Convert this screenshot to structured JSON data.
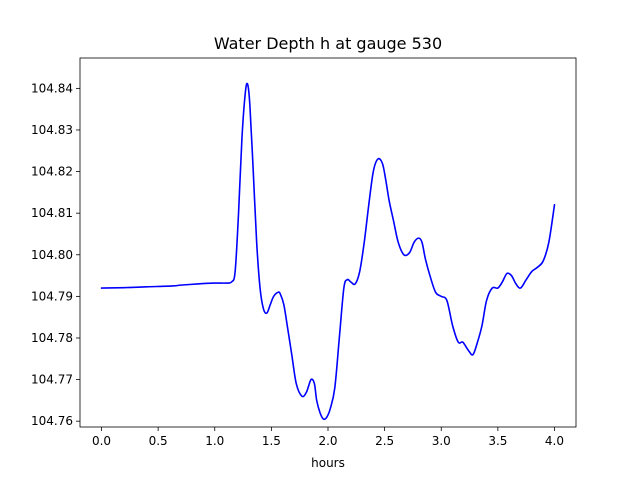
{
  "chart_data": {
    "type": "line",
    "title": "Water Depth h at gauge 530",
    "xlabel": "hours",
    "ylabel": "",
    "xlim": [
      -0.19,
      4.19
    ],
    "ylim": [
      104.7586,
      104.8473
    ],
    "grid": false,
    "x_ticks": [
      0.0,
      0.5,
      1.0,
      1.5,
      2.0,
      2.5,
      3.0,
      3.5,
      4.0
    ],
    "x_tick_labels": [
      "0.0",
      "0.5",
      "1.0",
      "1.5",
      "2.0",
      "2.5",
      "3.0",
      "3.5",
      "4.0"
    ],
    "y_ticks": [
      104.76,
      104.77,
      104.78,
      104.79,
      104.8,
      104.81,
      104.82,
      104.83,
      104.84
    ],
    "y_tick_labels": [
      "104.76",
      "104.77",
      "104.78",
      "104.79",
      "104.80",
      "104.81",
      "104.82",
      "104.83",
      "104.84"
    ],
    "series": [
      {
        "color": "#0000ff",
        "x": [
          0.0,
          0.2,
          0.4,
          0.63,
          0.7,
          0.85,
          1.0,
          1.1,
          1.15,
          1.18,
          1.21,
          1.24,
          1.27,
          1.29,
          1.31,
          1.34,
          1.37,
          1.4,
          1.43,
          1.46,
          1.49,
          1.52,
          1.56,
          1.58,
          1.61,
          1.64,
          1.68,
          1.72,
          1.77,
          1.81,
          1.85,
          1.88,
          1.9,
          1.93,
          1.96,
          1.99,
          2.02,
          2.06,
          2.1,
          2.14,
          2.17,
          2.2,
          2.24,
          2.28,
          2.32,
          2.36,
          2.4,
          2.44,
          2.48,
          2.51,
          2.54,
          2.58,
          2.62,
          2.67,
          2.72,
          2.76,
          2.8,
          2.83,
          2.86,
          2.9,
          2.95,
          3.0,
          3.05,
          3.1,
          3.15,
          3.19,
          3.24,
          3.28,
          3.32,
          3.36,
          3.4,
          3.45,
          3.5,
          3.54,
          3.58,
          3.62,
          3.66,
          3.7,
          3.75,
          3.8,
          3.85,
          3.9,
          3.95,
          4.0
        ],
        "y": [
          104.792,
          104.7921,
          104.7923,
          104.7925,
          104.7927,
          104.793,
          104.7932,
          104.7932,
          104.7935,
          104.796,
          104.81,
          104.828,
          104.839,
          104.841,
          104.836,
          104.82,
          104.803,
          104.792,
          104.787,
          104.786,
          104.788,
          104.79,
          104.791,
          104.7905,
          104.788,
          104.783,
          104.776,
          104.769,
          104.766,
          104.767,
          104.77,
          104.769,
          104.765,
          104.762,
          104.7605,
          104.761,
          104.763,
          104.768,
          104.78,
          104.792,
          104.794,
          104.7935,
          104.793,
          104.796,
          104.803,
          104.812,
          104.82,
          104.823,
          104.822,
          104.818,
          104.813,
          104.808,
          104.803,
          104.8,
          104.8005,
          104.803,
          104.804,
          104.803,
          104.799,
          104.795,
          104.791,
          104.79,
          104.789,
          104.783,
          104.779,
          104.779,
          104.777,
          104.776,
          104.779,
          104.783,
          104.789,
          104.792,
          104.792,
          104.7935,
          104.7955,
          104.795,
          104.793,
          104.792,
          104.794,
          104.796,
          104.797,
          104.7985,
          104.803,
          104.812
        ]
      }
    ]
  }
}
